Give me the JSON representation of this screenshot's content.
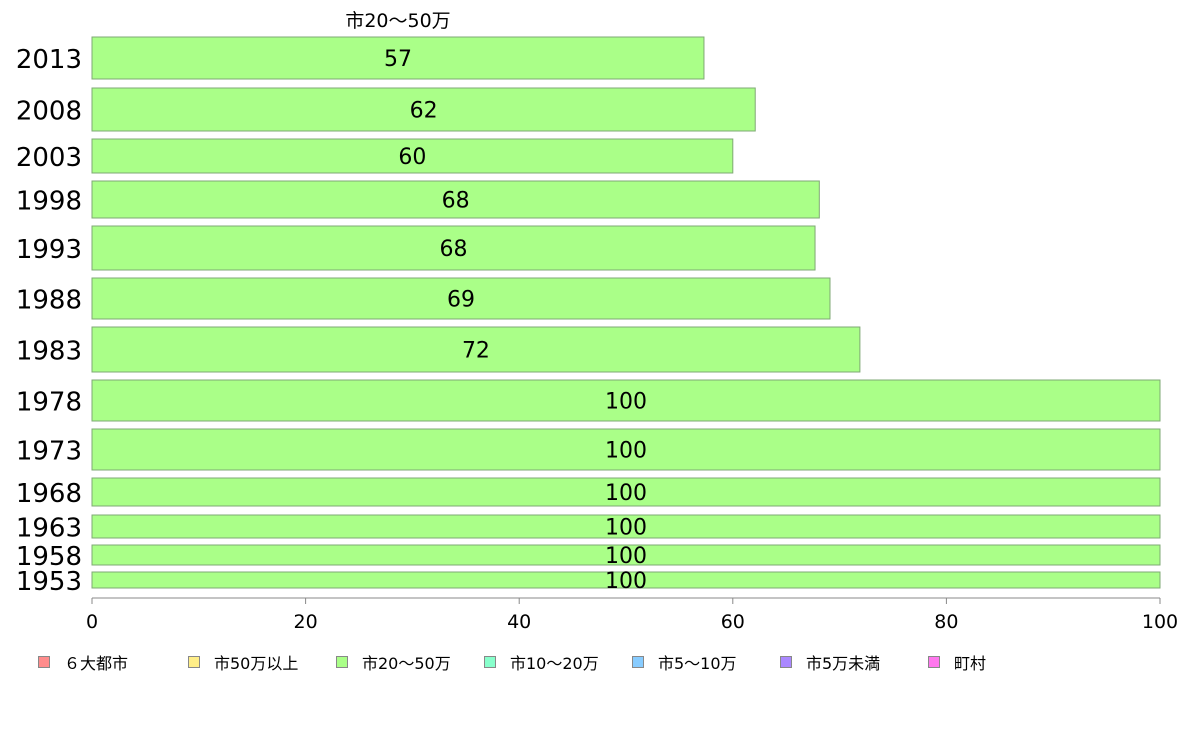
{
  "chart_data": {
    "type": "bar",
    "orientation": "horizontal",
    "title": "市20〜50万",
    "categories": [
      "2013",
      "2008",
      "2003",
      "1998",
      "1993",
      "1988",
      "1983",
      "1978",
      "1973",
      "1968",
      "1963",
      "1958",
      "1953"
    ],
    "series": [
      {
        "name": "市20〜50万",
        "color": "#aaff88",
        "values": [
          57.3,
          62.1,
          60.0,
          68.1,
          67.7,
          69.1,
          71.9,
          100,
          100,
          100,
          100,
          100,
          100
        ],
        "labels": [
          "57",
          "62",
          "60",
          "68",
          "68",
          "69",
          "72",
          "100",
          "100",
          "100",
          "100",
          "100",
          "100"
        ]
      }
    ],
    "xlim": [
      0,
      100
    ],
    "xticks": [
      "0",
      "20",
      "40",
      "60",
      "80",
      "100"
    ],
    "grid": false,
    "legend_position": "bottom"
  },
  "legend": [
    {
      "label": "６大都市",
      "color": "#ff8c8c"
    },
    {
      "label": "市50万以上",
      "color": "#ffee88"
    },
    {
      "label": "市20〜50万",
      "color": "#aaff88"
    },
    {
      "label": "市10〜20万",
      "color": "#88ffcc"
    },
    {
      "label": "市5〜10万",
      "color": "#88ccff"
    },
    {
      "label": "市5万未満",
      "color": "#aa88ff"
    },
    {
      "label": "町村",
      "color": "#ff77ee"
    }
  ]
}
